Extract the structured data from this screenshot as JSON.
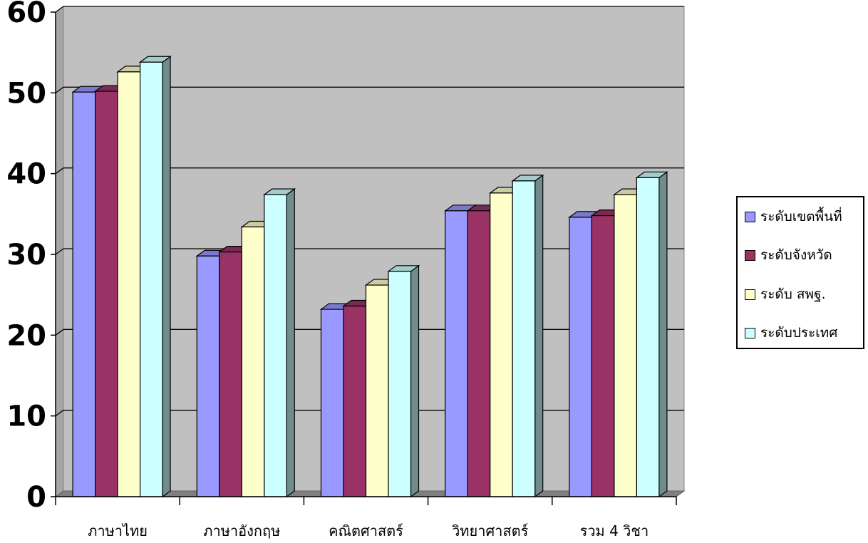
{
  "chart_data": {
    "type": "bar",
    "title": "",
    "xlabel": "",
    "ylabel": "",
    "ylim": [
      0,
      60
    ],
    "yticks": [
      "0",
      "10",
      "20",
      "30",
      "40",
      "50",
      "60"
    ],
    "grid": true,
    "legend_position": "right",
    "categories": [
      "ภาษาไทย",
      "ภาษาอังกฤษ",
      "คณิตศาสตร์",
      "วิทยาศาสตร์",
      "รวม 4 วิชา"
    ],
    "series": [
      {
        "name": "ระดับเขตพื้นที่",
        "color": "#9999ff",
        "values": [
          50.1,
          29.8,
          23.2,
          35.4,
          34.6
        ]
      },
      {
        "name": "ระดับจังหวัด",
        "color": "#993366",
        "values": [
          50.2,
          30.3,
          23.6,
          35.4,
          34.8
        ]
      },
      {
        "name": "ระดับ สพฐ.",
        "color": "#ffffcc",
        "values": [
          52.6,
          33.4,
          26.2,
          37.6,
          37.4
        ]
      },
      {
        "name": "ระดับประเทศ",
        "color": "#ccffff",
        "values": [
          53.8,
          37.4,
          27.9,
          39.1,
          39.5
        ]
      }
    ]
  }
}
